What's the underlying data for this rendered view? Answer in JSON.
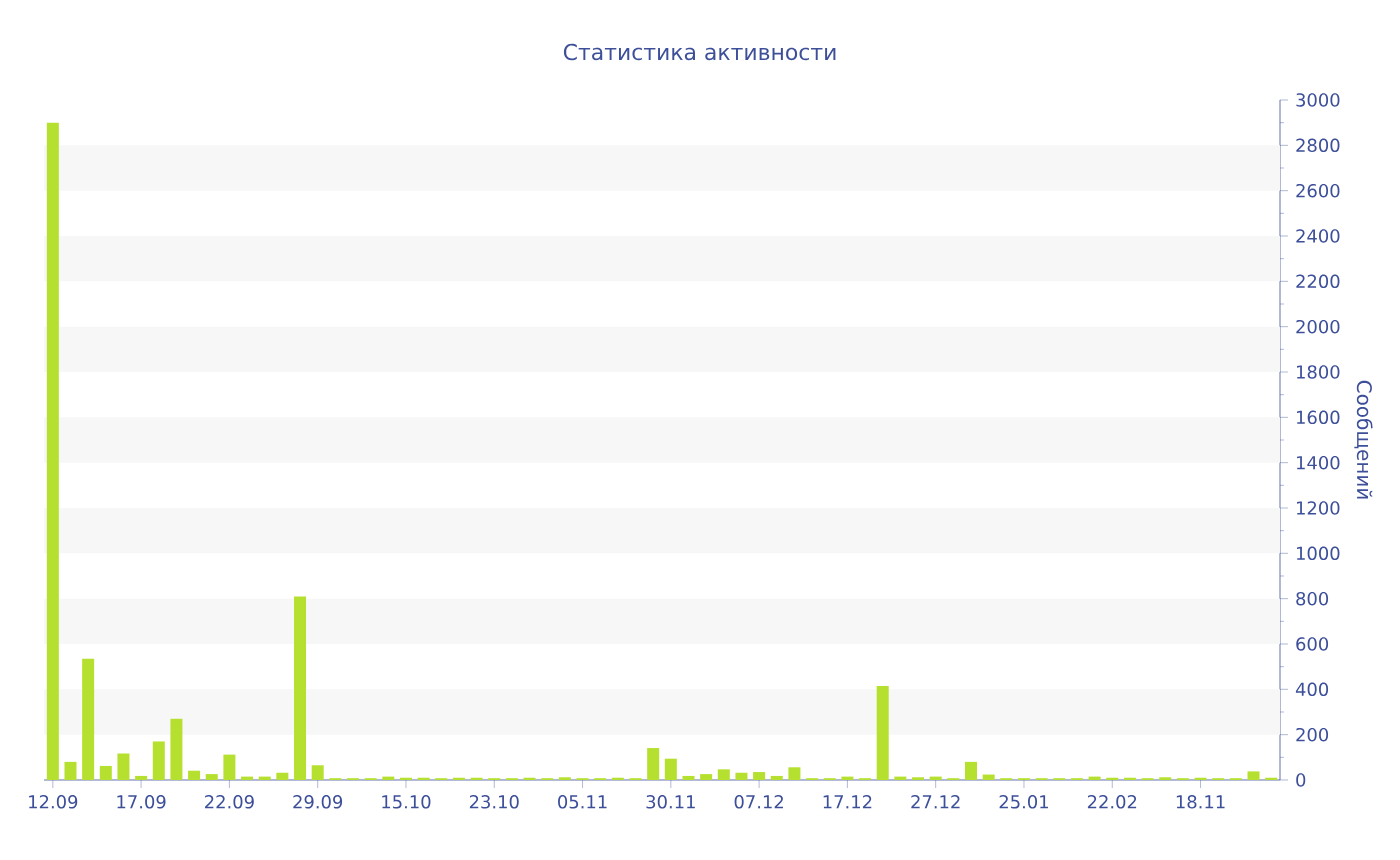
{
  "chart_data": {
    "type": "bar",
    "title": "Статистика активности",
    "ylabel": "Сообщений",
    "color": "#b5e02f",
    "categories": [
      "12.09",
      null,
      null,
      null,
      null,
      "17.09",
      null,
      null,
      null,
      null,
      "22.09",
      null,
      null,
      null,
      null,
      "29.09",
      null,
      null,
      null,
      null,
      "15.10",
      null,
      null,
      null,
      null,
      "23.10",
      null,
      null,
      null,
      null,
      "05.11",
      null,
      null,
      null,
      null,
      "30.11",
      null,
      null,
      null,
      null,
      "07.12",
      null,
      null,
      null,
      null,
      "17.12",
      null,
      null,
      null,
      null,
      "27.12",
      null,
      null,
      null,
      null,
      "25.01",
      null,
      null,
      null,
      null,
      "22.02",
      null,
      null,
      null,
      null,
      "18.11",
      null,
      null,
      null,
      null
    ],
    "values": [
      2900,
      80,
      535,
      62,
      117,
      18,
      170,
      270,
      41,
      26,
      112,
      15,
      15,
      32,
      810,
      65,
      8,
      8,
      8,
      15,
      10,
      10,
      8,
      10,
      10,
      8,
      8,
      10,
      8,
      12,
      8,
      8,
      10,
      8,
      141,
      94,
      18,
      26,
      47,
      32,
      35,
      18,
      56,
      8,
      8,
      15,
      8,
      415,
      15,
      12,
      15,
      8,
      80,
      24,
      8,
      8,
      8,
      8,
      8,
      15,
      10,
      10,
      8,
      12,
      8,
      10,
      8,
      8,
      38,
      10
    ],
    "ylim": [
      0,
      3000
    ],
    "yticks": [
      0,
      200,
      400,
      600,
      800,
      1000,
      1200,
      1400,
      1600,
      1800,
      2000,
      2200,
      2400,
      2600,
      2800,
      3000
    ],
    "bands": [
      {
        "axis": "y",
        "from": 200,
        "to": 400,
        "color": "#f7f7f7"
      },
      {
        "axis": "y",
        "from": 600,
        "to": 800,
        "color": "#f7f7f7"
      },
      {
        "axis": "y",
        "from": 1000,
        "to": 1200,
        "color": "#f7f7f7"
      },
      {
        "axis": "y",
        "from": 1400,
        "to": 1600,
        "color": "#f7f7f7"
      },
      {
        "axis": "y",
        "from": 1800,
        "to": 2000,
        "color": "#f7f7f7"
      },
      {
        "axis": "y",
        "from": 2200,
        "to": 2400,
        "color": "#f7f7f7"
      },
      {
        "axis": "y",
        "from": 2600,
        "to": 2800,
        "color": "#f7f7f7"
      }
    ]
  }
}
